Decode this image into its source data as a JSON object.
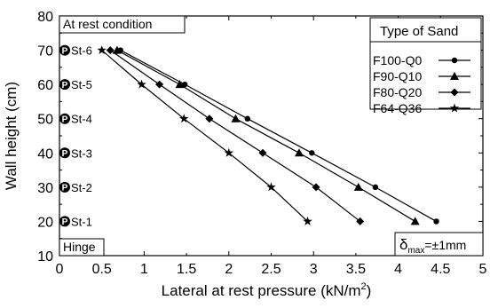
{
  "chart_data": {
    "type": "line",
    "xlabel": "Lateral at rest pressure (kN/m",
    "xlabel_sup": "2",
    "xlabel_suffix": ")",
    "ylabel": "Wall height (cm)",
    "xlim": [
      0,
      5
    ],
    "ylim": [
      10,
      80
    ],
    "xticks": [
      "0",
      "0.5",
      "1",
      "1.5",
      "2",
      "2.5",
      "3",
      "3.5",
      "4",
      "4.5",
      "5"
    ],
    "yticks": [
      "10",
      "20",
      "30",
      "40",
      "50",
      "60",
      "70",
      "80"
    ],
    "grid": false,
    "legend_title": "Type of Sand",
    "legend_position": "top-right",
    "series": [
      {
        "name": "F100-Q0",
        "marker": "circle",
        "x": [
          0.72,
          1.48,
          2.22,
          2.98,
          3.73,
          4.45
        ],
        "y": [
          70,
          60,
          50,
          40,
          30,
          20
        ]
      },
      {
        "name": "F90-Q10",
        "marker": "triangle",
        "x": [
          0.68,
          1.42,
          2.08,
          2.83,
          3.53,
          4.2
        ],
        "y": [
          70,
          60,
          50,
          40,
          30,
          20
        ]
      },
      {
        "name": "F80-Q20",
        "marker": "diamond",
        "x": [
          0.6,
          1.18,
          1.77,
          2.4,
          3.03,
          3.55
        ],
        "y": [
          70,
          60,
          50,
          40,
          30,
          20
        ]
      },
      {
        "name": "F64-Q36",
        "marker": "star",
        "x": [
          0.5,
          0.97,
          1.47,
          2.0,
          2.5,
          2.93
        ],
        "y": [
          70,
          60,
          50,
          40,
          30,
          20
        ]
      }
    ],
    "annotations": {
      "condition": "At rest condition",
      "hinge": "Hinge",
      "delta_symbol": "δ",
      "delta_sub": "max",
      "delta_value": "=±1mm"
    },
    "stations": [
      {
        "label": "St-6",
        "y": 70
      },
      {
        "label": "St-5",
        "y": 60
      },
      {
        "label": "St-4",
        "y": 50
      },
      {
        "label": "St-3",
        "y": 40
      },
      {
        "label": "St-2",
        "y": 30
      },
      {
        "label": "St-1",
        "y": 20
      }
    ],
    "station_marker": "P"
  }
}
